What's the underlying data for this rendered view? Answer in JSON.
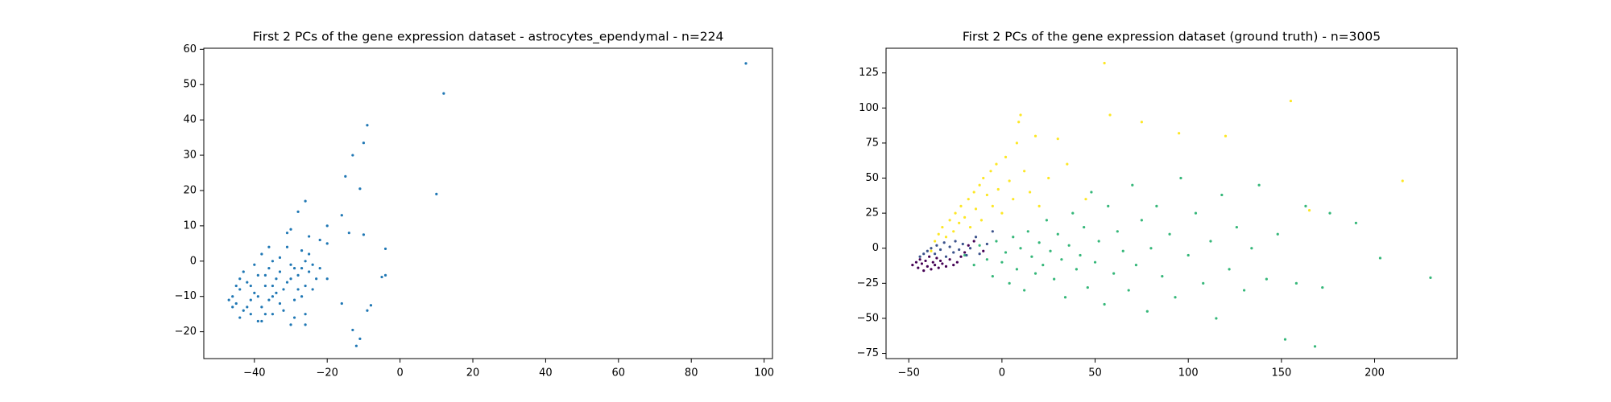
{
  "chart_data": [
    {
      "type": "scatter",
      "title": "First 2 PCs of the gene expression dataset - astrocytes_ependymal - n=224",
      "xlim": [
        -53.9,
        102.3
      ],
      "ylim": [
        -27.6,
        60.3
      ],
      "xticks": [
        {
          "value": -40,
          "label": "−40"
        },
        {
          "value": -20,
          "label": "−20"
        },
        0,
        20,
        40,
        60,
        80,
        100
      ],
      "yticks": [
        {
          "value": -20,
          "label": "−20"
        },
        {
          "value": -10,
          "label": "−10"
        },
        0,
        10,
        20,
        30,
        40,
        50,
        60
      ],
      "series": [
        {
          "color": "#1f77b4",
          "x": [
            -46,
            -45,
            -44,
            -43,
            -42,
            -41,
            -40,
            -39,
            -38,
            -37,
            -36,
            -35,
            -34,
            -33,
            -32,
            -44,
            -42,
            -40,
            -38,
            -36,
            -35,
            -33,
            -31,
            -30,
            -29,
            -28,
            -27,
            -26,
            -25,
            -24,
            -47,
            -45,
            -43,
            -41,
            -39,
            -37,
            -36,
            -34,
            -32,
            -30,
            -28,
            -27,
            -46,
            -44,
            -41,
            -39,
            -37,
            -35,
            -33,
            -31,
            -29,
            -25,
            -24,
            -23,
            95,
            12,
            -9,
            -10,
            -13,
            -15,
            -11,
            10,
            -26,
            -28,
            -16,
            -14,
            -10,
            -4,
            -5,
            -4,
            -8,
            -9,
            -13,
            -11,
            -12,
            -16,
            -20,
            -22,
            -20,
            -22,
            -20,
            -25,
            -30,
            -31,
            -26,
            -27,
            -26,
            -26,
            -29,
            -30,
            -35,
            -38
          ],
          "values": [
            -10,
            -12,
            -8,
            -14,
            -6,
            -11,
            -9,
            -4,
            -13,
            -7,
            -2,
            -10,
            -5,
            -12,
            -8,
            -16,
            -13,
            -1,
            2,
            4,
            0,
            -3,
            -6,
            -1,
            -11,
            -4,
            3,
            0,
            -3,
            -8,
            -11,
            -7,
            -3,
            -15,
            -17,
            -15,
            -11,
            -9,
            -14,
            -5,
            -8,
            -2,
            -13,
            -5,
            -7,
            -10,
            -4,
            -7,
            1,
            4,
            -2,
            2,
            -1,
            -5,
            56,
            47.5,
            38.5,
            33.5,
            30,
            24,
            20.5,
            19,
            17,
            14,
            13,
            8,
            7.5,
            3.5,
            -4.5,
            -4,
            -12.5,
            -14,
            -19.5,
            -22,
            -24,
            -12,
            -5,
            -2,
            5,
            6,
            10,
            7,
            9,
            8,
            -7,
            -10,
            -15,
            -18,
            -16,
            -18,
            -15,
            -17
          ]
        }
      ]
    },
    {
      "type": "scatter",
      "title": "First 2 PCs of the gene expression dataset (ground truth) - n=3005",
      "xlim": [
        -62.2,
        244.3
      ],
      "ylim": [
        -78.7,
        142.6
      ],
      "xticks": [
        {
          "value": -50,
          "label": "−50"
        },
        0,
        50,
        100,
        150,
        200
      ],
      "yticks": [
        {
          "value": -75,
          "label": "−75"
        },
        {
          "value": -50,
          "label": "−50"
        },
        {
          "value": -25,
          "label": "−25"
        },
        0,
        25,
        50,
        75,
        100,
        125
      ],
      "series": [
        {
          "color": "#35b779",
          "x": [
            -20,
            -15,
            -12,
            -8,
            -5,
            -3,
            0,
            2,
            4,
            6,
            8,
            10,
            12,
            14,
            16,
            18,
            20,
            22,
            24,
            26,
            28,
            30,
            32,
            34,
            36,
            38,
            40,
            42,
            44,
            46,
            48,
            50,
            52,
            55,
            57,
            60,
            62,
            65,
            68,
            70,
            72,
            75,
            78,
            80,
            83,
            86,
            90,
            93,
            96,
            100,
            104,
            108,
            112,
            115,
            118,
            122,
            126,
            130,
            134,
            138,
            142,
            148,
            152,
            158,
            163,
            168,
            172,
            176,
            190,
            203,
            230
          ],
          "values": [
            -5,
            -12,
            2,
            -8,
            -20,
            5,
            -10,
            -3,
            -25,
            8,
            -15,
            0,
            -30,
            12,
            -6,
            -18,
            4,
            -12,
            20,
            -2,
            -22,
            10,
            -8,
            -35,
            2,
            25,
            -15,
            -5,
            15,
            -28,
            40,
            -10,
            5,
            -40,
            30,
            -18,
            12,
            -2,
            -30,
            45,
            -12,
            20,
            -45,
            0,
            30,
            -20,
            10,
            -35,
            50,
            -5,
            25,
            -25,
            5,
            -50,
            38,
            -15,
            15,
            -30,
            0,
            45,
            -22,
            10,
            -65,
            -25,
            30,
            -70,
            -28,
            25,
            18,
            -7,
            -21
          ]
        },
        {
          "color": "#fde725",
          "x": [
            -38,
            -36,
            -34,
            -32,
            -30,
            -28,
            -26,
            -25,
            -23,
            -22,
            -20,
            -18,
            -17,
            -15,
            -14,
            -12,
            -11,
            -10,
            -8,
            -6,
            -5,
            -3,
            -2,
            0,
            2,
            4,
            6,
            8,
            10,
            9,
            12,
            15,
            18,
            20,
            25,
            30,
            35,
            45,
            55,
            58,
            75,
            95,
            120,
            155,
            165,
            215
          ],
          "values": [
            -2,
            5,
            10,
            15,
            8,
            20,
            12,
            25,
            18,
            30,
            22,
            35,
            15,
            40,
            28,
            45,
            20,
            50,
            38,
            55,
            30,
            60,
            42,
            25,
            65,
            48,
            35,
            75,
            95,
            90,
            55,
            40,
            80,
            30,
            50,
            78,
            60,
            35,
            132,
            95,
            90,
            82,
            80,
            105,
            27,
            48
          ]
        },
        {
          "color": "#3b528b",
          "x": [
            -44,
            -42,
            -40,
            -38,
            -36,
            -35,
            -33,
            -31,
            -30,
            -28,
            -26,
            -25,
            -23,
            -21,
            -19,
            -17,
            -14,
            -12,
            -8,
            -5
          ],
          "values": [
            -6,
            -4,
            -2,
            0,
            -4,
            2,
            -1,
            4,
            -6,
            1,
            -3,
            5,
            -1,
            3,
            -5,
            0,
            8,
            -4,
            3,
            12
          ]
        },
        {
          "color": "#440154",
          "x": [
            -48,
            -46,
            -45,
            -44,
            -43,
            -42,
            -41,
            -40,
            -39,
            -38,
            -37,
            -36,
            -35,
            -34,
            -33,
            -32,
            -30,
            -28,
            -26,
            -24,
            -22,
            -20,
            -18,
            -15,
            -10
          ],
          "values": [
            -12,
            -10,
            -14,
            -8,
            -11,
            -16,
            -9,
            -13,
            -6,
            -15,
            -10,
            -12,
            -7,
            -14,
            -9,
            -11,
            -13,
            -8,
            -12,
            -10,
            -6,
            -3,
            2,
            5,
            -2
          ]
        }
      ]
    }
  ]
}
